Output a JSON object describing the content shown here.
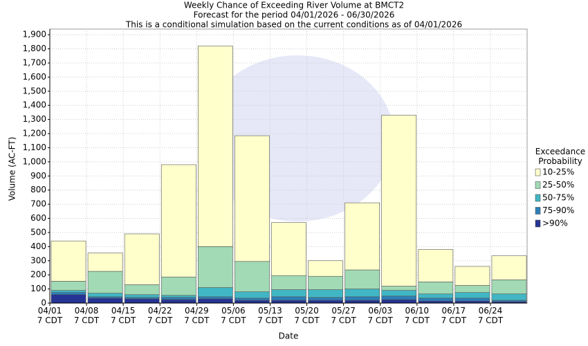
{
  "chart_data": {
    "type": "stacked_bar",
    "title": "Weekly Chance of Exceeding River Volume at BMCT2",
    "subtitle": "Forecast for the period 04/01/2026 - 06/30/2026",
    "subtitle2": "This is a conditional simulation based on the current conditions as of 04/01/2026",
    "y_label": "Volume (AC-FT)",
    "x_label": "Date",
    "legend_title": "Exceedance\nProbability",
    "legend_position": "right",
    "categories": [
      "04/01\n7 CDT",
      "04/08\n7 CDT",
      "04/15\n7 CDT",
      "04/22\n7 CDT",
      "04/29\n7 CDT",
      "05/06\n7 CDT",
      "05/13\n7 CDT",
      "05/20\n7 CDT",
      "05/27\n7 CDT",
      "06/03\n7 CDT",
      "06/10\n7 CDT",
      "06/17\n7 CDT",
      "06/24\n7 CDT"
    ],
    "series": [
      {
        "name": ">90%",
        "color": "#253494",
        "values": [
          60,
          35,
          30,
          25,
          30,
          20,
          20,
          20,
          20,
          25,
          15,
          15,
          10
        ]
      },
      {
        "name": "75-90%",
        "color": "#2c7fb8",
        "values": [
          15,
          10,
          10,
          15,
          15,
          15,
          25,
          20,
          25,
          25,
          20,
          20,
          10
        ]
      },
      {
        "name": "50-75%",
        "color": "#41b6c4",
        "values": [
          15,
          25,
          20,
          15,
          65,
          45,
          50,
          55,
          55,
          40,
          30,
          40,
          45
        ]
      },
      {
        "name": "25-50%",
        "color": "#a1dab4",
        "values": [
          65,
          155,
          70,
          130,
          290,
          215,
          100,
          95,
          135,
          30,
          85,
          50,
          100
        ]
      },
      {
        "name": "10-25%",
        "color": "#ffffcc",
        "values": [
          285,
          130,
          360,
          795,
          1420,
          890,
          375,
          110,
          475,
          1210,
          230,
          135,
          170
        ]
      }
    ],
    "ylim": [
      0,
      1940
    ],
    "yticks": [
      0,
      100,
      200,
      300,
      400,
      500,
      600,
      700,
      800,
      900,
      {
        "value": 1000,
        "label": "1,000"
      },
      {
        "value": 1100,
        "label": "1,100"
      },
      {
        "value": 1200,
        "label": "1,200"
      },
      {
        "value": 1300,
        "label": "1,300"
      },
      {
        "value": 1400,
        "label": "1,400"
      },
      {
        "value": 1500,
        "label": "1,500"
      },
      {
        "value": 1600,
        "label": "1,600"
      },
      {
        "value": 1700,
        "label": "1,700"
      },
      {
        "value": 1800,
        "label": "1,800"
      },
      {
        "value": 1900,
        "label": "1,900"
      }
    ],
    "grid": true
  }
}
